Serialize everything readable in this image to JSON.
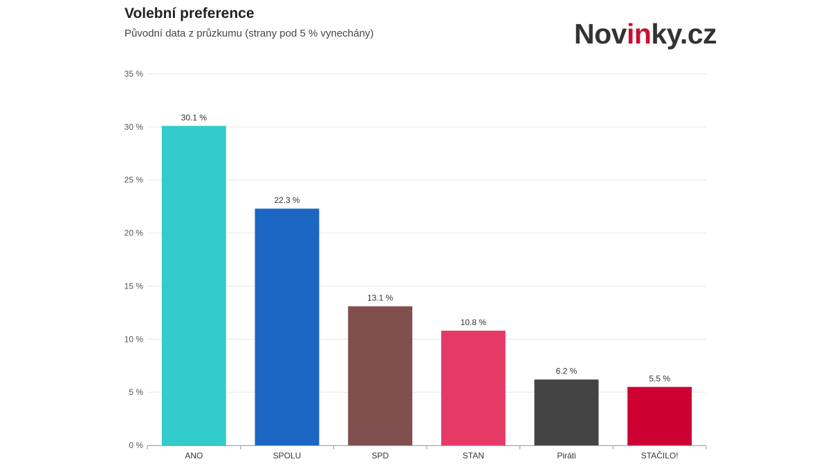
{
  "header": {
    "title": "Volební preference",
    "subtitle": "Původní data z průzkumu (strany pod 5 % vynechány)"
  },
  "logo": {
    "part1": "Nov",
    "part2": "in",
    "part3": "ky.cz"
  },
  "chart_data": {
    "type": "bar",
    "title": "Volební preference",
    "subtitle": "Původní data z průzkumu (strany pod 5 % vynechány)",
    "categories": [
      "ANO",
      "SPOLU",
      "SPD",
      "STAN",
      "Piráti",
      "STAČILO!"
    ],
    "values": [
      30.1,
      22.3,
      13.1,
      10.8,
      6.2,
      5.5
    ],
    "data_labels": [
      "30.1 %",
      "22.3 %",
      "13.1 %",
      "10.8 %",
      "6.2 %",
      "5.5 %"
    ],
    "colors": [
      "#33cccc",
      "#1a66c2",
      "#824f4f",
      "#e63a66",
      "#444444",
      "#cc0033"
    ],
    "ylim": [
      0,
      35
    ],
    "yticks": [
      0,
      5,
      10,
      15,
      20,
      25,
      30,
      35
    ],
    "ytick_labels": [
      "0 %",
      "5 %",
      "10 %",
      "15 %",
      "20 %",
      "25 %",
      "30 %",
      "35 %"
    ],
    "xlabel": "",
    "ylabel": "",
    "grid": true,
    "legend": "none"
  }
}
